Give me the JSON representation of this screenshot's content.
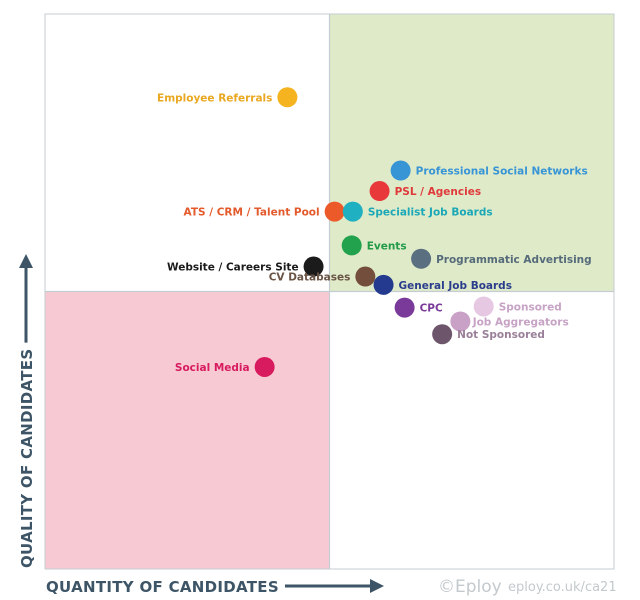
{
  "chart_data": {
    "type": "scatter",
    "title": "",
    "xlabel": "QUANTITY OF CANDIDATES",
    "ylabel": "QUALITY OF CANDIDATES",
    "xlim": [
      0,
      100
    ],
    "ylim": [
      0,
      100
    ],
    "grid": false,
    "legend": "none",
    "quadrants": {
      "top_right_color": "#dfeac9",
      "bottom_left_color": "#f7cad3",
      "other_color": "#ffffff",
      "border_color": "#c5cdd2",
      "split_x": 50,
      "split_y": 50
    },
    "points": [
      {
        "label": "Employee Referrals",
        "x": 42.6,
        "y": 85.0,
        "color": "#f5b320",
        "label_color": "#e9a820",
        "label_side": "left"
      },
      {
        "label": "Professional Social Networks",
        "x": 62.5,
        "y": 71.8,
        "color": "#3795d6",
        "label_color": "#3795d6",
        "label_side": "right"
      },
      {
        "label": "PSL / Agencies",
        "x": 58.8,
        "y": 68.1,
        "color": "#e8383a",
        "label_color": "#e0393a",
        "label_side": "right"
      },
      {
        "label": "ATS / CRM / Talent Pool",
        "x": 50.9,
        "y": 64.4,
        "color": "#ec5a2a",
        "label_color": "#e35a2c",
        "label_side": "left"
      },
      {
        "label": "Specialist Job Boards",
        "x": 54.1,
        "y": 64.4,
        "color": "#1fb1c1",
        "label_color": "#1aa8b7",
        "label_side": "right"
      },
      {
        "label": "Events",
        "x": 53.9,
        "y": 58.3,
        "color": "#23a24d",
        "label_color": "#239a48",
        "label_side": "right"
      },
      {
        "label": "Programmatic Advertising",
        "x": 66.1,
        "y": 55.9,
        "color": "#5a7080",
        "label_color": "#556b7a",
        "label_side": "right"
      },
      {
        "label": "Website / Careers Site",
        "x": 47.2,
        "y": 54.5,
        "color": "#1b1b1b",
        "label_color": "#1b1b1b",
        "label_side": "left"
      },
      {
        "label": "CV Databases",
        "x": 56.3,
        "y": 52.7,
        "color": "#744e3c",
        "label_color": "#6a5446",
        "label_side": "left"
      },
      {
        "label": "General Job Boards",
        "x": 59.5,
        "y": 51.2,
        "color": "#233a8f",
        "label_color": "#2a3d8c",
        "label_side": "right"
      },
      {
        "label": "CPC",
        "x": 63.2,
        "y": 47.1,
        "color": "#7a3a9a",
        "label_color": "#7a3a9a",
        "label_side": "right"
      },
      {
        "label": "Sponsored",
        "x": 77.1,
        "y": 47.3,
        "color": "#e6c8e3",
        "label_color": "#c7a3c5",
        "label_side": "right"
      },
      {
        "label": "",
        "x": 73.0,
        "y": 44.6,
        "color": "#c9a1c6",
        "label_color": "#c9a1c6",
        "label_side": "right"
      },
      {
        "label": "Not Sponsored",
        "x": 69.8,
        "y": 42.3,
        "color": "#6d566b",
        "label_color": "#9a7f98",
        "label_side": "right"
      },
      {
        "label": "Social Media",
        "x": 38.6,
        "y": 36.4,
        "color": "#d81b5f",
        "label_color": "#d81b5f",
        "label_side": "left"
      }
    ],
    "annotations": [
      {
        "text": "Job Aggregators",
        "near": "Sponsored",
        "color": "#c7a3c5"
      }
    ]
  },
  "credit": {
    "brand": "©Eploy",
    "url": "eploy.co.uk/ca21"
  }
}
